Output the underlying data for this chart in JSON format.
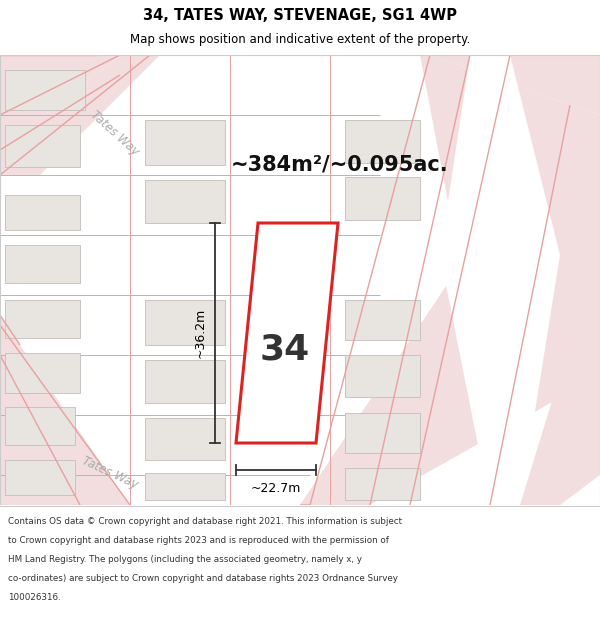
{
  "title_line1": "34, TATES WAY, STEVENAGE, SG1 4WP",
  "title_line2": "Map shows position and indicative extent of the property.",
  "area_text": "~384m²/~0.095ac.",
  "plot_number": "34",
  "dim_width": "~22.7m",
  "dim_height": "~36.2m",
  "footer_lines": [
    "Contains OS data © Crown copyright and database right 2021. This information is subject",
    "to Crown copyright and database rights 2023 and is reproduced with the permission of",
    "HM Land Registry. The polygons (including the associated geometry, namely x, y",
    "co-ordinates) are subject to Crown copyright and database rights 2023 Ordnance Survey",
    "100026316."
  ],
  "map_bg": "#ffffff",
  "road_fill": "#f2dede",
  "road_edge": "#e8a0a0",
  "plot_fill": "#ffffff",
  "plot_edge": "#dd2222",
  "building_fill": "#e8e4e0",
  "building_edge": "#c8c4c0",
  "property_line_color": "#e8a0a0",
  "dim_line_color": "#333333",
  "tates_way_upper": "Tates Way",
  "tates_way_lower": "Tates Way",
  "area_color": "#111111",
  "plot_num_color": "#333333"
}
